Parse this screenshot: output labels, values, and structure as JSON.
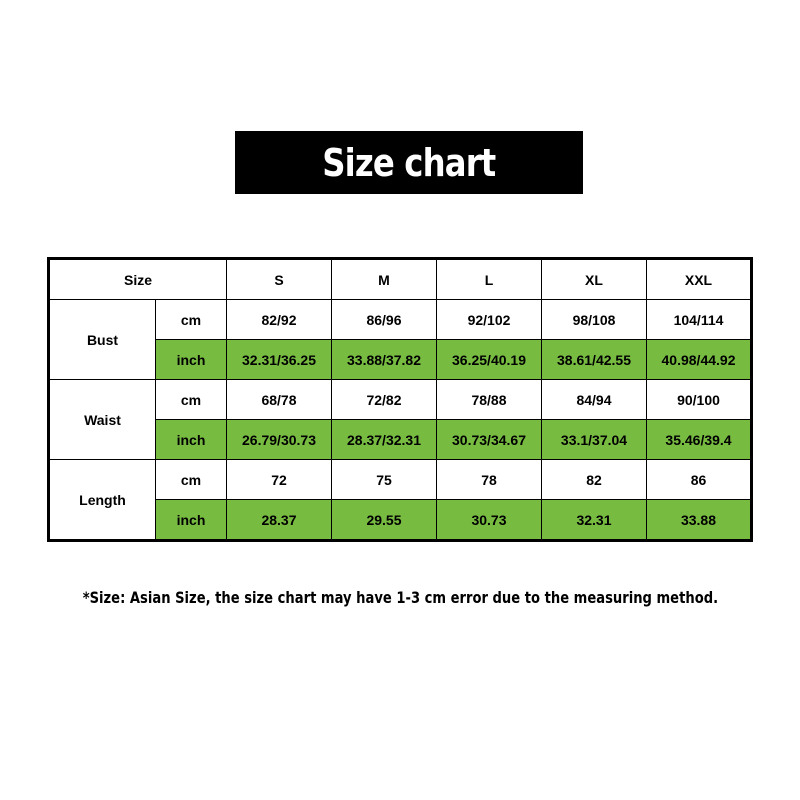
{
  "title": "Size chart",
  "table": {
    "header": [
      "Size",
      "S",
      "M",
      "L",
      "XL",
      "XXL"
    ],
    "colors": {
      "highlight_row": "#77bc41"
    },
    "groups": [
      {
        "label": "Bust",
        "rows": [
          {
            "unit": "cm",
            "values": [
              "82/92",
              "86/96",
              "92/102",
              "98/108",
              "104/114"
            ]
          },
          {
            "unit": "inch",
            "values": [
              "32.31/36.25",
              "33.88/37.82",
              "36.25/40.19",
              "38.61/42.55",
              "40.98/44.92"
            ]
          }
        ]
      },
      {
        "label": "Waist",
        "rows": [
          {
            "unit": "cm",
            "values": [
              "68/78",
              "72/82",
              "78/88",
              "84/94",
              "90/100"
            ]
          },
          {
            "unit": "inch",
            "values": [
              "26.79/30.73",
              "28.37/32.31",
              "30.73/34.67",
              "33.1/37.04",
              "35.46/39.4"
            ]
          }
        ]
      },
      {
        "label": "Length",
        "rows": [
          {
            "unit": "cm",
            "values": [
              "72",
              "75",
              "78",
              "82",
              "86"
            ]
          },
          {
            "unit": "inch",
            "values": [
              "28.37",
              "29.55",
              "30.73",
              "32.31",
              "33.88"
            ]
          }
        ]
      }
    ]
  },
  "note": "*Size: Asian Size, the size chart may have 1-3 cm error due to the measuring method."
}
